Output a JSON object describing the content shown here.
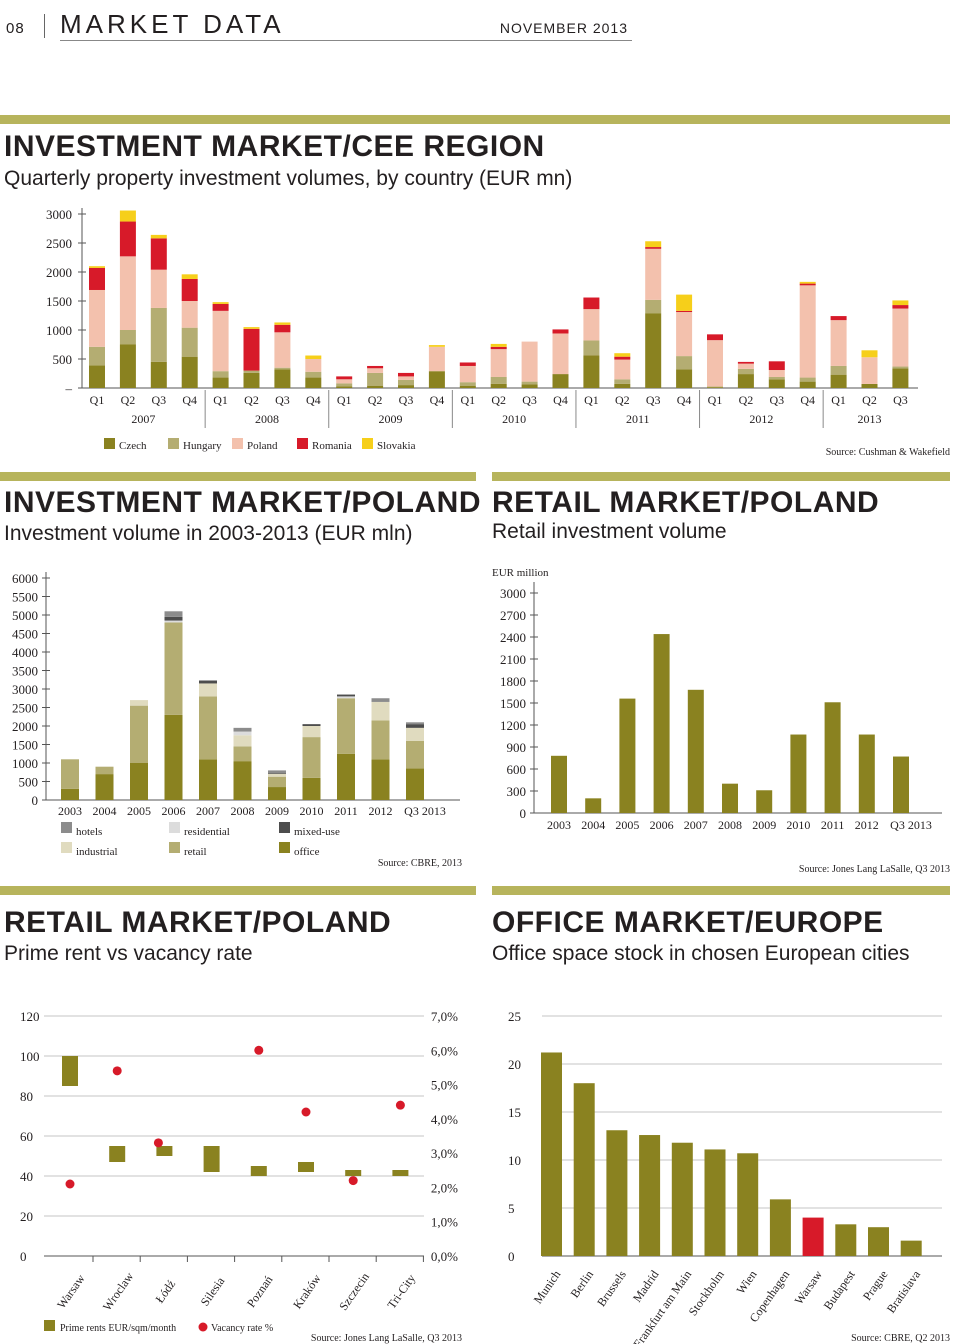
{
  "header": {
    "page_number": "08",
    "title": "MARKET DATA",
    "date": "NOVEMBER 2013"
  },
  "colors": {
    "accent": "#b7b45c",
    "czech": "#8a8220",
    "hungary": "#b4ad72",
    "poland": "#f3c1ad",
    "romania": "#d71a29",
    "slovakia": "#f6cf1a",
    "hotels": "#8c8c8c",
    "residential": "#dcdcdc",
    "mixed": "#4d4d4d",
    "industrial": "#e0dbbf",
    "retail": "#b4ad72",
    "office": "#8a8220",
    "highlight": "#d71a29"
  },
  "sections": [
    {
      "title": "INVESTMENT MARKET/CEE REGION",
      "subtitle": "Quarterly property investment volumes, by country (EUR mn)"
    },
    {
      "title": "INVESTMENT MARKET/POLAND",
      "subtitle": "Investment volume in 2003-2013 (EUR mln)"
    },
    {
      "title": "RETAIL MARKET/POLAND",
      "subtitle": "Retail investment volume"
    },
    {
      "title": "RETAIL MARKET/POLAND",
      "subtitle": "Prime rent vs vacancy rate"
    },
    {
      "title": "OFFICE MARKET/EUROPE",
      "subtitle": "Office space stock in chosen European cities"
    }
  ],
  "chart_data": [
    {
      "type": "bar",
      "stacked": true,
      "ylim": [
        0,
        3000
      ],
      "yticks": [
        "3000",
        "2500",
        "2000",
        "1500",
        "1000",
        "500",
        "–"
      ],
      "categories": [
        "Q1",
        "Q2",
        "Q3",
        "Q4",
        "Q1",
        "Q2",
        "Q3",
        "Q4",
        "Q1",
        "Q2",
        "Q3",
        "Q4",
        "Q1",
        "Q2",
        "Q3",
        "Q4",
        "Q1",
        "Q2",
        "Q3",
        "Q4",
        "Q1",
        "Q2",
        "Q3",
        "Q4",
        "Q1",
        "Q2",
        "Q3"
      ],
      "years": [
        "2007",
        "2008",
        "2009",
        "2010",
        "2011",
        "2012",
        "2013"
      ],
      "series": [
        {
          "name": "Czech",
          "values": [
            390,
            750,
            450,
            540,
            180,
            260,
            320,
            180,
            30,
            40,
            50,
            290,
            40,
            70,
            60,
            240,
            560,
            70,
            1290,
            320,
            15,
            240,
            150,
            110,
            230,
            70,
            340
          ]
        },
        {
          "name": "Hungary",
          "values": [
            320,
            250,
            930,
            500,
            110,
            40,
            30,
            100,
            50,
            220,
            90,
            0,
            60,
            120,
            50,
            0,
            260,
            80,
            230,
            230,
            10,
            90,
            40,
            70,
            150,
            0,
            30
          ]
        },
        {
          "name": "Poland",
          "values": [
            980,
            1270,
            660,
            460,
            1040,
            0,
            610,
            220,
            70,
            80,
            60,
            420,
            280,
            480,
            690,
            700,
            540,
            340,
            880,
            760,
            800,
            90,
            120,
            1590,
            790,
            460,
            1000
          ]
        },
        {
          "name": "Romania",
          "values": [
            380,
            600,
            540,
            380,
            120,
            720,
            130,
            0,
            50,
            40,
            60,
            0,
            60,
            40,
            0,
            70,
            200,
            50,
            30,
            20,
            100,
            30,
            150,
            30,
            70,
            0,
            60
          ]
        },
        {
          "name": "Slovakia",
          "values": [
            30,
            190,
            60,
            80,
            30,
            30,
            40,
            60,
            0,
            0,
            0,
            30,
            0,
            50,
            0,
            0,
            0,
            60,
            100,
            280,
            0,
            0,
            0,
            30,
            0,
            120,
            80
          ]
        }
      ],
      "source": "Source: Cushman & Wakefield"
    },
    {
      "type": "bar",
      "stacked": true,
      "ylim": [
        0,
        6000
      ],
      "yticks": [
        "6000",
        "5500",
        "5000",
        "4500",
        "4000",
        "3500",
        "3000",
        "2500",
        "2000",
        "1500",
        "1000",
        "500",
        "0"
      ],
      "categories": [
        "2003",
        "2004",
        "2005",
        "2006",
        "2007",
        "2008",
        "2009",
        "2010",
        "2011",
        "2012",
        "Q3 2013"
      ],
      "series": [
        {
          "name": "office",
          "values": [
            300,
            700,
            1000,
            2300,
            1100,
            1050,
            350,
            600,
            1250,
            1100,
            850
          ]
        },
        {
          "name": "retail",
          "values": [
            800,
            200,
            1550,
            2500,
            1700,
            400,
            280,
            1100,
            1500,
            1050,
            750
          ]
        },
        {
          "name": "industrial",
          "values": [
            0,
            0,
            150,
            0,
            350,
            300,
            80,
            300,
            0,
            500,
            350
          ]
        },
        {
          "name": "residential",
          "values": [
            0,
            0,
            0,
            50,
            0,
            100,
            0,
            0,
            50,
            0,
            0
          ]
        },
        {
          "name": "mixed-use",
          "values": [
            0,
            0,
            0,
            100,
            80,
            0,
            20,
            50,
            50,
            0,
            100
          ]
        },
        {
          "name": "hotels",
          "values": [
            0,
            0,
            0,
            150,
            0,
            100,
            70,
            0,
            0,
            100,
            50
          ]
        }
      ],
      "legend": [
        "hotels",
        "residential",
        "mixed-use",
        "industrial",
        "retail",
        "office"
      ],
      "source": "Source: CBRE, 2013"
    },
    {
      "type": "bar",
      "ylabel": "EUR million",
      "ylim": [
        0,
        3000
      ],
      "yticks": [
        "3000",
        "2700",
        "2400",
        "2100",
        "1800",
        "1500",
        "1200",
        "900",
        "600",
        "300",
        "0"
      ],
      "categories": [
        "2003",
        "2004",
        "2005",
        "2006",
        "2007",
        "2008",
        "2009",
        "2010",
        "2011",
        "2012",
        "Q3 2013"
      ],
      "values": [
        780,
        200,
        1560,
        2440,
        1680,
        400,
        310,
        1070,
        1510,
        1070,
        770
      ],
      "source": "Source: Jones Lang LaSalle, Q3 2013"
    },
    {
      "type": "bar",
      "ylim": [
        0,
        120
      ],
      "y2lim": [
        0,
        7
      ],
      "yticks": [
        "120",
        "100",
        "80",
        "60",
        "40",
        "20",
        "0"
      ],
      "y2ticks": [
        "7,0%",
        "6,0%",
        "5,0%",
        "4,0%",
        "3,0%",
        "2,0%",
        "1,0%",
        "0,0%"
      ],
      "categories": [
        "Warsaw",
        "Wroclaw",
        "Łódź",
        "Silesia",
        "Poznań",
        "Kraków",
        "Szczecin",
        "Tri-City"
      ],
      "range_bars": [
        [
          85,
          100
        ],
        [
          47,
          55
        ],
        [
          50,
          55
        ],
        [
          42,
          55
        ],
        [
          40,
          45
        ],
        [
          42,
          47
        ],
        [
          40,
          43
        ],
        [
          40,
          43
        ]
      ],
      "vacancy_rate": [
        2.1,
        5.4,
        3.3,
        null,
        6.0,
        4.2,
        2.2,
        4.4
      ],
      "legend": [
        "Prime rents EUR/sqm/month",
        "Vacancy rate %"
      ],
      "source": "Source: Jones Lang LaSalle, Q3 2013"
    },
    {
      "type": "bar",
      "ylim": [
        0,
        25
      ],
      "yticks": [
        "25",
        "20",
        "15",
        "10",
        "5",
        "0"
      ],
      "categories": [
        "Munich",
        "Berlin",
        "Brussels",
        "Madrid",
        "Frankfurt am Main",
        "Stockholm",
        "Wien",
        "Copenhagen",
        "Warsaw",
        "Budapest",
        "Prague",
        "Bratislava"
      ],
      "values": [
        21.2,
        18.0,
        13.1,
        12.6,
        11.8,
        11.1,
        10.7,
        5.9,
        4.0,
        3.3,
        3.0,
        1.6
      ],
      "highlight": "Warsaw",
      "source": "Source: CBRE, Q2 2013"
    }
  ]
}
